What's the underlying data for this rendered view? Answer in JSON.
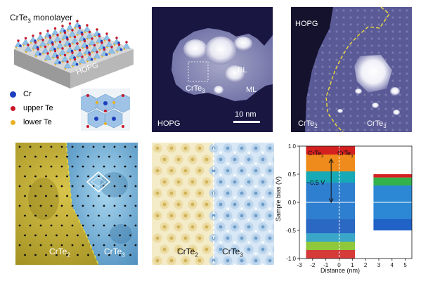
{
  "figure": {
    "panel_a": {
      "title": "CrTe",
      "title_sub": "3",
      "title_suffix": " monolayer",
      "substrate": "HOPG",
      "legend": [
        {
          "label": "Cr",
          "color": "#1d3fbf"
        },
        {
          "label": "upper Te",
          "color": "#c8162a"
        },
        {
          "label": "lower Te",
          "color": "#e8b122"
        }
      ]
    },
    "panel_b": {
      "crte3": "CrTe",
      "crte3_sub": "3",
      "bl": "BL",
      "ml": "ML",
      "hopg": "HOPG",
      "scalebar": "10 nm"
    },
    "panel_c": {
      "hopg": "HOPG",
      "crte2": "CrTe",
      "crte2_sub": "2",
      "crte3": "CrTe",
      "crte3_sub": "3"
    },
    "panel_d": {
      "crte2": "CrTe",
      "crte2_sub": "2",
      "crte3": "CrTe",
      "crte3_sub": "3"
    },
    "panel_e": {
      "crte2": "CrTe",
      "crte2_sub": "2",
      "crte3": "CrTe",
      "crte3_sub": "3"
    },
    "panel_f": {
      "crte2": "CrTe",
      "crte2_sub": "2",
      "crte3": "CrTe",
      "crte3_sub": "3",
      "annotation": "~0.5 V",
      "xlabel": "Distance (nm)",
      "ylabel": "Sample bias (V)"
    }
  },
  "chart_data": {
    "type": "heatmap",
    "xlabel": "Distance (nm)",
    "ylabel": "Sample bias (V)",
    "xlim": [
      -3,
      5.5
    ],
    "ylim": [
      -1.0,
      1.0
    ],
    "xticks": [
      -3,
      -2,
      -1,
      0,
      1,
      2,
      3,
      4,
      5
    ],
    "yticks": [
      -1.0,
      -0.5,
      0.0,
      0.5,
      1.0
    ],
    "ytick_labels": [
      "-1.0",
      "-0.5",
      "0.0",
      "0.5",
      "1.0"
    ],
    "annotation": "~0.5 V",
    "segments": [
      {
        "label": "CrTe2",
        "x_range": [
          -2.5,
          0
        ]
      },
      {
        "label": "CrTe3",
        "x_range": [
          0,
          1.2
        ]
      },
      {
        "label": "",
        "x_range": [
          2.6,
          5.5
        ]
      }
    ]
  }
}
